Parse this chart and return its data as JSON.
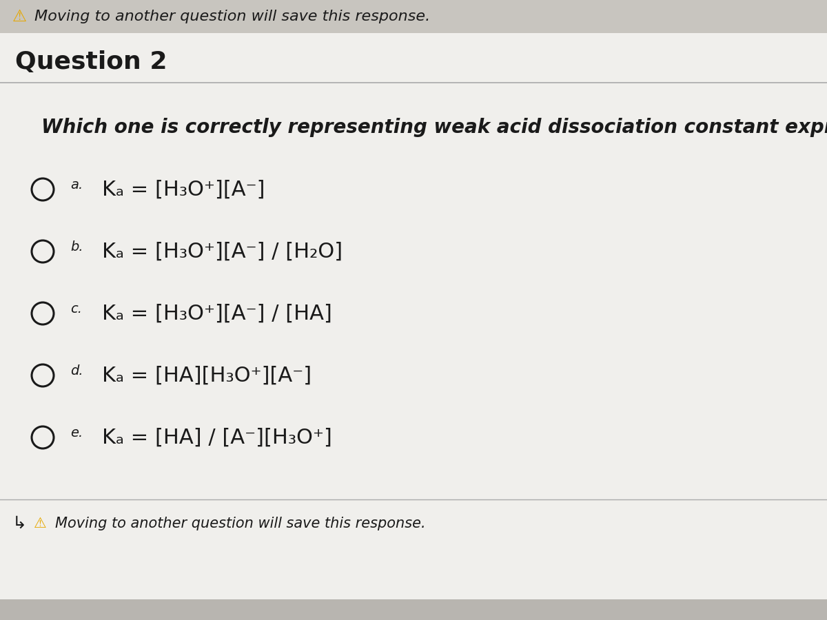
{
  "background_color": "#e8e6e2",
  "top_bar_color": "#c8c5bf",
  "bottom_bar_color": "#b8b5b0",
  "main_bg_color": "#f0efec",
  "header_text": "Moving to another question will save this response.",
  "header_warning_color": "#e6a800",
  "question_label": "Question 2",
  "question_text": "Which one is correctly representing weak acid dissociation constant expression?",
  "options": [
    {
      "letter": "a",
      "formula_text": "Kₐ = [H₃O⁺][A⁻]"
    },
    {
      "letter": "b",
      "formula_text": "Kₐ = [H₃O⁺][A⁻] / [H₂O]"
    },
    {
      "letter": "c",
      "formula_text": "Kₐ = [H₃O⁺][A⁻] / [HA]"
    },
    {
      "letter": "d",
      "formula_text": "Kₐ = [HA][H₃O⁺][A⁻]"
    },
    {
      "letter": "e",
      "formula_text": "Kₐ = [HA] / [A⁻][H₃O⁺]"
    }
  ],
  "footer_text": "Moving to another question will save this response.",
  "divider_color": "#aaaaaa",
  "text_color": "#1a1a1a",
  "radio_color": "#1a1a1a",
  "font_size_question_label": 26,
  "font_size_question_text": 20,
  "font_size_options": 22,
  "font_size_header": 16,
  "font_size_footer": 15
}
